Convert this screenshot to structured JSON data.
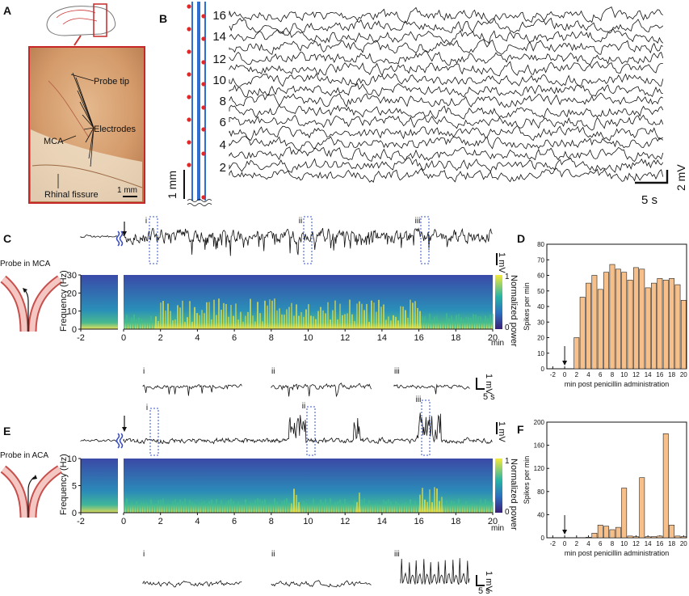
{
  "panels": {
    "A": {
      "letter": "A",
      "labels": {
        "probe_tip": "Probe tip",
        "electrodes": "Electrodes",
        "mca": "MCA",
        "rhinal_fissure": "Rhinal fissure",
        "scale": "1 mm"
      }
    },
    "B": {
      "letter": "B",
      "channel_ticks": [
        "16",
        "14",
        "12",
        "10",
        "8",
        "6",
        "4",
        "2"
      ],
      "scale_v": "1 mm",
      "scale_mv": "2 mV",
      "scale_time": "5 s"
    },
    "C": {
      "letter": "C",
      "probe_label": "Probe in MCA",
      "windows": [
        "i",
        "ii",
        "iii"
      ],
      "ylabel": "Frequency (Hz)",
      "yticks": [
        "30",
        "20",
        "10",
        "0"
      ],
      "xticks": [
        "-2",
        "0",
        "2",
        "4",
        "6",
        "8",
        "10",
        "12",
        "14",
        "16",
        "18",
        "20"
      ],
      "xunit": "min",
      "colorbar_label": "Normalized power",
      "colorbar_ticks": [
        "1",
        "0"
      ],
      "scale_mv": "1 mV",
      "scale_time": "5 s",
      "zoom_labels": [
        "i",
        "ii",
        "iii"
      ]
    },
    "D": {
      "letter": "D"
    },
    "E": {
      "letter": "E",
      "probe_label": "Probe in ACA",
      "windows": [
        "i",
        "ii",
        "iii"
      ],
      "ylabel": "Frequency (Hz)",
      "yticks": [
        "10",
        "5",
        "0"
      ],
      "xticks": [
        "-2",
        "0",
        "2",
        "4",
        "6",
        "8",
        "10",
        "12",
        "14",
        "16",
        "18",
        "20"
      ],
      "xunit": "min",
      "colorbar_label": "Normalized power",
      "colorbar_ticks": [
        "1",
        "0"
      ],
      "scale_mv": "1 mV",
      "scale_time": "5 s",
      "zoom_labels": [
        "i",
        "ii",
        "iii"
      ]
    },
    "F": {
      "letter": "F"
    }
  },
  "chart_data": [
    {
      "panel": "D",
      "type": "bar",
      "title": "",
      "xlabel": "min post penicillin administration",
      "ylabel": "Spikes per min",
      "xticks": [
        "-2",
        "0",
        "2",
        "4",
        "6",
        "8",
        "10",
        "12",
        "14",
        "16",
        "18",
        "20"
      ],
      "yticks": [
        "0",
        "10",
        "20",
        "30",
        "40",
        "50",
        "60",
        "70",
        "80"
      ],
      "xlim": [
        -3,
        20.5
      ],
      "ylim": [
        0,
        80
      ],
      "x": [
        2,
        3,
        4,
        5,
        6,
        7,
        8,
        9,
        10,
        11,
        12,
        13,
        14,
        15,
        16,
        17,
        18,
        19,
        20
      ],
      "values": [
        20,
        46,
        55,
        60,
        51,
        62,
        67,
        64,
        62,
        57,
        65,
        64,
        52,
        55,
        58,
        57,
        58,
        54,
        44
      ],
      "annotation": "penicillin injection arrow at 0"
    },
    {
      "panel": "F",
      "type": "bar",
      "title": "",
      "xlabel": "min post penicillin administration",
      "ylabel": "Spikes per min",
      "xticks": [
        "-2",
        "0",
        "2",
        "4",
        "6",
        "8",
        "10",
        "12",
        "14",
        "16",
        "18",
        "20"
      ],
      "yticks": [
        "0",
        "40",
        "80",
        "120",
        "160",
        "200"
      ],
      "xlim": [
        -3,
        20.5
      ],
      "ylim": [
        0,
        200
      ],
      "x": [
        1,
        2,
        3,
        4,
        5,
        6,
        7,
        8,
        9,
        10,
        11,
        12,
        13,
        14,
        15,
        16,
        17,
        18,
        19,
        20
      ],
      "values": [
        0,
        0,
        0,
        1,
        8,
        22,
        20,
        14,
        18,
        86,
        3,
        2,
        104,
        2,
        2,
        3,
        180,
        22,
        3,
        2
      ],
      "annotation": "penicillin injection arrow at 0"
    }
  ]
}
